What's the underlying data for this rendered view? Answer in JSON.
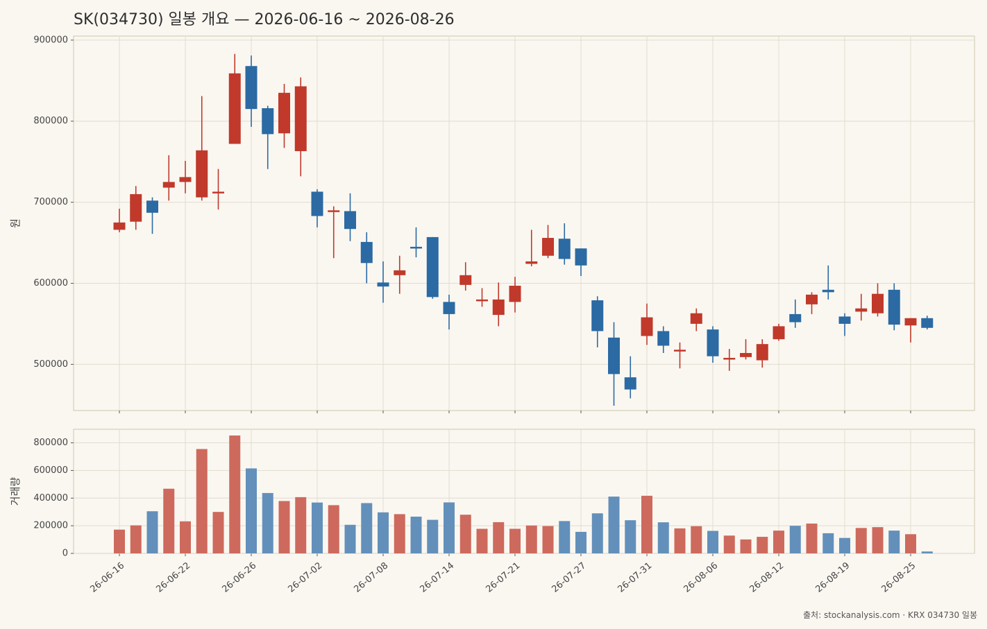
{
  "title": "SK(034730) 일봉 개요 — 2026-06-16 ~ 2026-08-26",
  "source": "출처: stockanalysis.com · KRX 034730 일봉",
  "colors": {
    "up": "#c0392b",
    "down": "#2b6aa3",
    "up_volume": "#cd6a5d",
    "down_volume": "#6390bb",
    "grid": "#e2dcd0",
    "frame": "#d6cfb6",
    "background": "#faf7f1"
  },
  "chart_data": [
    {
      "type": "candlestick",
      "ylabel": "원",
      "ylim": [
        443000,
        905000
      ],
      "yticks": [
        500000,
        600000,
        700000,
        800000,
        900000
      ],
      "xticks": [
        "26-06-16",
        "26-06-22",
        "26-06-26",
        "26-07-02",
        "26-07-08",
        "26-07-14",
        "26-07-21",
        "26-07-27",
        "26-07-31",
        "26-08-06",
        "26-08-12",
        "26-08-19",
        "26-08-25"
      ],
      "x": [
        "26-06-16",
        "26-06-17",
        "26-06-18",
        "26-06-19",
        "26-06-22",
        "26-06-23",
        "26-06-24",
        "26-06-25",
        "26-06-26",
        "26-06-29",
        "26-06-30",
        "26-07-01",
        "26-07-02",
        "26-07-03",
        "26-07-06",
        "26-07-07",
        "26-07-08",
        "26-07-09",
        "26-07-10",
        "26-07-13",
        "26-07-14",
        "26-07-15",
        "26-07-16",
        "26-07-17",
        "26-07-21",
        "26-07-22",
        "26-07-23",
        "26-07-24",
        "26-07-27",
        "26-07-28",
        "26-07-29",
        "26-07-30",
        "26-07-31",
        "26-08-03",
        "26-08-04",
        "26-08-05",
        "26-08-06",
        "26-08-07",
        "26-08-10",
        "26-08-11",
        "26-08-12",
        "26-08-13",
        "26-08-14",
        "26-08-18",
        "26-08-19",
        "26-08-20",
        "26-08-21",
        "26-08-24",
        "26-08-25",
        "26-08-26"
      ],
      "open": [
        666000,
        676000,
        702000,
        718000,
        725000,
        706000,
        713000,
        772000,
        868000,
        816000,
        785000,
        763000,
        713000,
        690000,
        689000,
        651000,
        601000,
        610000,
        645000,
        657000,
        577000,
        598000,
        580000,
        561000,
        577000,
        624000,
        634000,
        655000,
        643000,
        579000,
        533000,
        484000,
        535000,
        541000,
        518000,
        550000,
        543000,
        508000,
        509000,
        505000,
        531000,
        562000,
        574000,
        592000,
        559000,
        565000,
        563000,
        592000,
        548000,
        557000
      ],
      "high": [
        692000,
        720000,
        706000,
        758000,
        751000,
        831000,
        741000,
        883000,
        881000,
        819000,
        846000,
        854000,
        716000,
        695000,
        711000,
        663000,
        627000,
        634000,
        669000,
        657000,
        586000,
        626000,
        594000,
        601000,
        608000,
        666000,
        672000,
        674000,
        643000,
        584000,
        552000,
        510000,
        575000,
        547000,
        527000,
        569000,
        547000,
        519000,
        531000,
        531000,
        550000,
        580000,
        589000,
        622000,
        563000,
        587000,
        600000,
        600000,
        557000,
        560000
      ],
      "low": [
        663000,
        666000,
        661000,
        702000,
        711000,
        702000,
        691000,
        772000,
        793000,
        741000,
        767000,
        732000,
        669000,
        631000,
        652000,
        600000,
        576000,
        587000,
        632000,
        581000,
        543000,
        591000,
        571000,
        547000,
        564000,
        621000,
        631000,
        623000,
        609000,
        521000,
        449000,
        458000,
        524000,
        514000,
        495000,
        541000,
        502000,
        492000,
        506000,
        496000,
        529000,
        545000,
        562000,
        580000,
        535000,
        554000,
        559000,
        542000,
        527000,
        543000
      ],
      "close": [
        675000,
        710000,
        687000,
        725000,
        731000,
        764000,
        713000,
        859000,
        815000,
        784000,
        835000,
        843000,
        683000,
        690000,
        667000,
        625000,
        596000,
        616000,
        644000,
        583000,
        562000,
        610000,
        580000,
        580000,
        597000,
        627000,
        656000,
        630000,
        622000,
        541000,
        488000,
        469000,
        558000,
        523000,
        518000,
        563000,
        510000,
        508000,
        514000,
        525000,
        547000,
        552000,
        586000,
        589000,
        550000,
        569000,
        587000,
        549000,
        557000,
        545000
      ]
    },
    {
      "type": "bar",
      "ylabel": "거래량",
      "ylim": [
        0,
        898000
      ],
      "yticks": [
        0,
        200000,
        400000,
        600000,
        800000
      ],
      "values": [
        172000,
        203000,
        305000,
        468000,
        232000,
        755000,
        300000,
        853000,
        615000,
        437000,
        379000,
        407000,
        368000,
        349000,
        207000,
        364000,
        297000,
        284000,
        266000,
        243000,
        369000,
        280000,
        178000,
        226000,
        178000,
        202000,
        198000,
        234000,
        156000,
        290000,
        411000,
        240000,
        417000,
        225000,
        181000,
        197000,
        163000,
        129000,
        101000,
        120000,
        165000,
        200000,
        216000,
        146000,
        112000,
        184000,
        190000,
        165000,
        139000,
        14000
      ]
    }
  ]
}
